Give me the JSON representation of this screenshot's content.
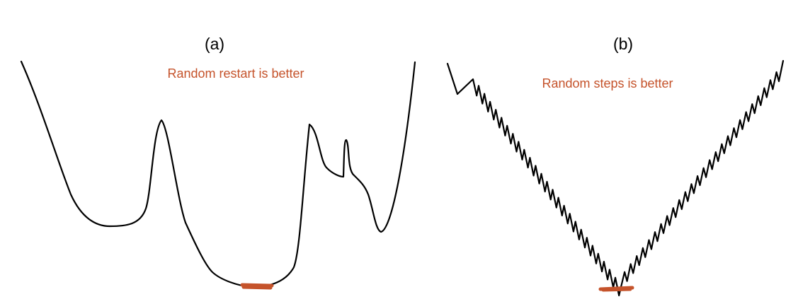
{
  "colors": {
    "annotation": "#c5532b",
    "curve": "#000000",
    "background": "#ffffff"
  },
  "panels": [
    {
      "label": "(a)",
      "annotation": "Random restart is better"
    },
    {
      "label": "(b)",
      "annotation": "Random steps is better"
    }
  ]
}
